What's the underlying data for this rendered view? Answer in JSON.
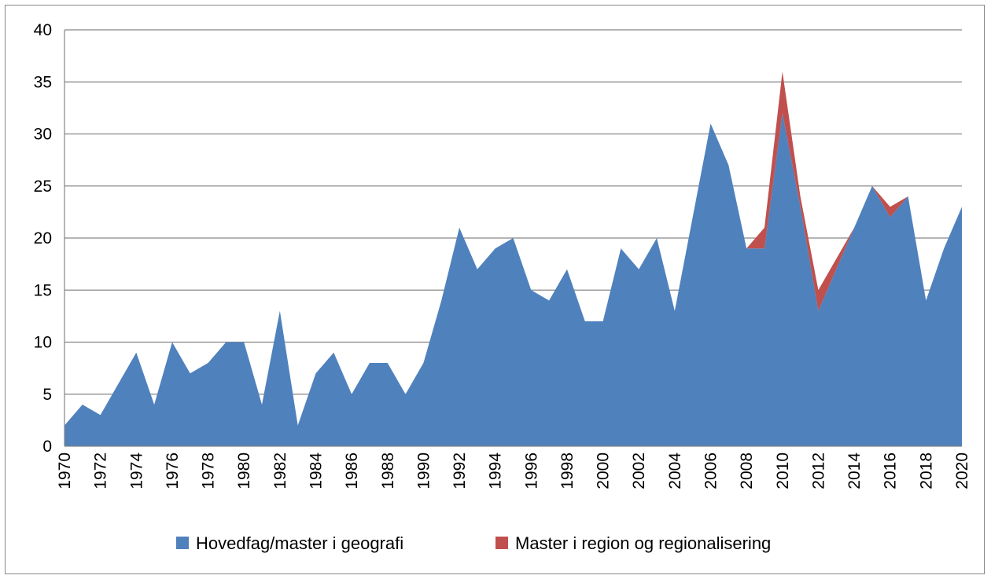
{
  "chart_data": {
    "type": "area",
    "stacked": true,
    "title": "",
    "xlabel": "",
    "ylabel": "",
    "ylim": [
      0,
      40
    ],
    "yticks": [
      0,
      5,
      10,
      15,
      20,
      25,
      30,
      35,
      40
    ],
    "x": [
      1970,
      1971,
      1972,
      1973,
      1974,
      1975,
      1976,
      1977,
      1978,
      1979,
      1980,
      1981,
      1982,
      1983,
      1984,
      1985,
      1986,
      1987,
      1988,
      1989,
      1990,
      1991,
      1992,
      1993,
      1994,
      1995,
      1996,
      1997,
      1998,
      1999,
      2000,
      2001,
      2002,
      2003,
      2004,
      2005,
      2006,
      2007,
      2008,
      2009,
      2010,
      2011,
      2012,
      2013,
      2014,
      2015,
      2016,
      2017,
      2018,
      2019,
      2020
    ],
    "xtick_labels": [
      1970,
      1972,
      1974,
      1976,
      1978,
      1980,
      1982,
      1984,
      1986,
      1988,
      1990,
      1992,
      1994,
      1996,
      1998,
      2000,
      2002,
      2004,
      2006,
      2008,
      2010,
      2012,
      2014,
      2016,
      2018,
      2020
    ],
    "grid": "horizontal",
    "legend_position": "bottom",
    "series": [
      {
        "name": "Hovedfag/master i geografi",
        "color": "#4f81bd",
        "values": [
          2,
          4,
          3,
          6,
          9,
          4,
          10,
          7,
          8,
          10,
          10,
          4,
          13,
          2,
          7,
          9,
          5,
          8,
          8,
          5,
          8,
          14,
          21,
          17,
          19,
          20,
          15,
          14,
          17,
          12,
          12,
          19,
          17,
          20,
          13,
          22,
          31,
          27,
          19,
          19,
          32,
          23,
          13,
          17,
          21,
          25,
          22,
          24,
          14,
          19,
          23
        ]
      },
      {
        "name": "Master i region og regionalisering",
        "color": "#c0504d",
        "values": [
          0,
          0,
          0,
          0,
          0,
          0,
          0,
          0,
          0,
          0,
          0,
          0,
          0,
          0,
          0,
          0,
          0,
          0,
          0,
          0,
          0,
          0,
          0,
          0,
          0,
          0,
          0,
          0,
          0,
          0,
          0,
          0,
          0,
          0,
          0,
          0,
          0,
          0,
          0,
          2,
          4,
          1,
          2,
          1,
          0,
          0,
          1,
          0,
          0,
          0,
          0
        ]
      }
    ]
  }
}
